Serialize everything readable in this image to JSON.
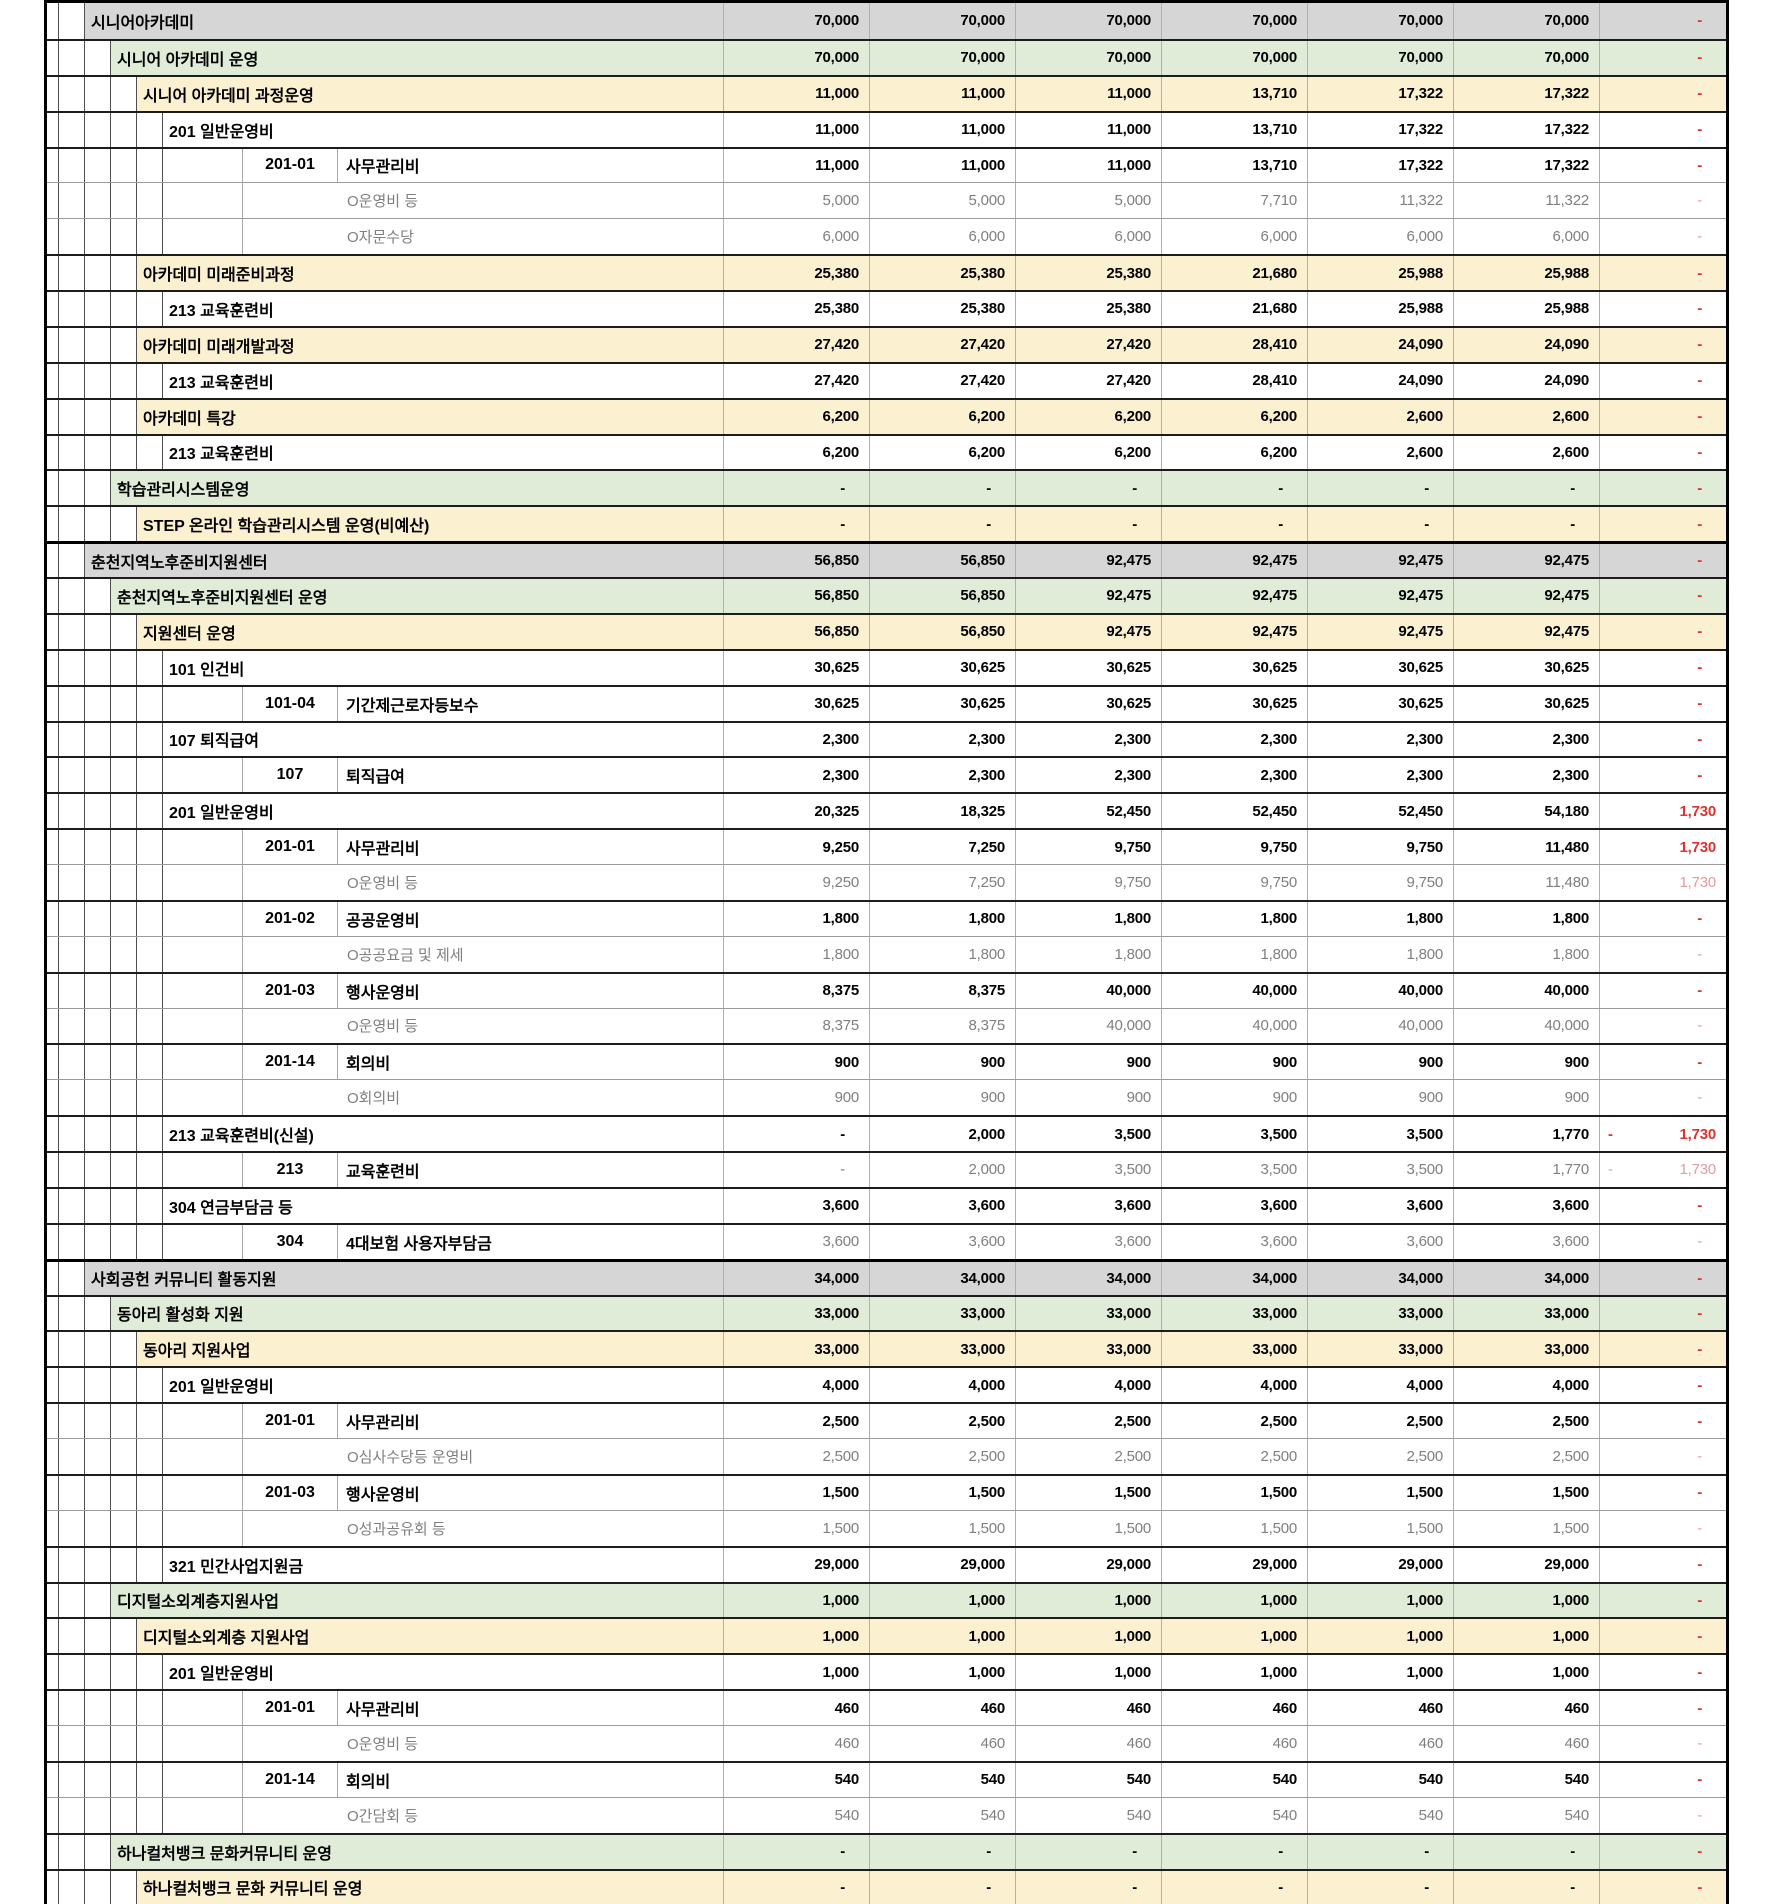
{
  "colors": {
    "level0_bg": "#d6d6d6",
    "level1_bg": "#e0ecd8",
    "level2_bg": "#fbf0cf",
    "diff_red": "#e03131",
    "diff_red_light": "#e39c9c",
    "muted_text": "#7f7f7f"
  },
  "sheet": {
    "rows": [
      {
        "level": 0,
        "label": "시니어아카데미",
        "values": [
          "70,000",
          "70,000",
          "70,000",
          "70,000",
          "70,000",
          "70,000"
        ],
        "diff": "-"
      },
      {
        "level": 1,
        "label": "시니어 아카데미 운영",
        "values": [
          "70,000",
          "70,000",
          "70,000",
          "70,000",
          "70,000",
          "70,000"
        ],
        "diff": "-"
      },
      {
        "level": 2,
        "label": "시니어 아카데미 과정운영",
        "values": [
          "11,000",
          "11,000",
          "11,000",
          "13,710",
          "17,322",
          "17,322"
        ],
        "diff": "-"
      },
      {
        "level": 3,
        "label": "201 일반운영비",
        "values": [
          "11,000",
          "11,000",
          "11,000",
          "13,710",
          "17,322",
          "17,322"
        ],
        "diff": "-"
      },
      {
        "level": 4,
        "code": "201-01",
        "name": "사무관리비",
        "values": [
          "11,000",
          "11,000",
          "11,000",
          "13,710",
          "17,322",
          "17,322"
        ],
        "diff": "-"
      },
      {
        "level": 5,
        "label": "O운영비 등",
        "muted": true,
        "values": [
          "5,000",
          "5,000",
          "5,000",
          "7,710",
          "11,322",
          "11,322"
        ],
        "diff": "-"
      },
      {
        "level": 5,
        "label": "O자문수당",
        "muted": true,
        "values": [
          "6,000",
          "6,000",
          "6,000",
          "6,000",
          "6,000",
          "6,000"
        ],
        "diff": "-"
      },
      {
        "level": 2,
        "label": "아카데미 미래준비과정",
        "values": [
          "25,380",
          "25,380",
          "25,380",
          "21,680",
          "25,988",
          "25,988"
        ],
        "diff": "-"
      },
      {
        "level": 3,
        "label": "213 교육훈련비",
        "values": [
          "25,380",
          "25,380",
          "25,380",
          "21,680",
          "25,988",
          "25,988"
        ],
        "diff": "-"
      },
      {
        "level": 2,
        "label": "아카데미 미래개발과정",
        "values": [
          "27,420",
          "27,420",
          "27,420",
          "28,410",
          "24,090",
          "24,090"
        ],
        "diff": "-"
      },
      {
        "level": 3,
        "label": "213 교육훈련비",
        "values": [
          "27,420",
          "27,420",
          "27,420",
          "28,410",
          "24,090",
          "24,090"
        ],
        "diff": "-"
      },
      {
        "level": 2,
        "label": "아카데미 특강",
        "values": [
          "6,200",
          "6,200",
          "6,200",
          "6,200",
          "2,600",
          "2,600"
        ],
        "diff": "-"
      },
      {
        "level": 3,
        "label": "213 교육훈련비",
        "values": [
          "6,200",
          "6,200",
          "6,200",
          "6,200",
          "2,600",
          "2,600"
        ],
        "diff": "-"
      },
      {
        "level": 1,
        "label": "학습관리시스템운영",
        "values": [
          "-",
          "-",
          "-",
          "-",
          "-",
          "-"
        ],
        "diff": "-"
      },
      {
        "level": 2,
        "label": "STEP 온라인 학습관리시스템 운영(비예산)",
        "values": [
          "-",
          "-",
          "-",
          "-",
          "-",
          "-"
        ],
        "diff": "-"
      },
      {
        "level": 0,
        "label": "춘천지역노후준비지원센터",
        "values": [
          "56,850",
          "56,850",
          "92,475",
          "92,475",
          "92,475",
          "92,475"
        ],
        "diff": "-"
      },
      {
        "level": 1,
        "label": "춘천지역노후준비지원센터 운영",
        "values": [
          "56,850",
          "56,850",
          "92,475",
          "92,475",
          "92,475",
          "92,475"
        ],
        "diff": "-"
      },
      {
        "level": 2,
        "label": "지원센터 운영",
        "values": [
          "56,850",
          "56,850",
          "92,475",
          "92,475",
          "92,475",
          "92,475"
        ],
        "diff": "-"
      },
      {
        "level": 3,
        "label": "101 인건비",
        "values": [
          "30,625",
          "30,625",
          "30,625",
          "30,625",
          "30,625",
          "30,625"
        ],
        "diff": "-"
      },
      {
        "level": 4,
        "code": "101-04",
        "name": "기간제근로자등보수",
        "values": [
          "30,625",
          "30,625",
          "30,625",
          "30,625",
          "30,625",
          "30,625"
        ],
        "diff": "-"
      },
      {
        "level": 3,
        "label": "107 퇴직급여",
        "values": [
          "2,300",
          "2,300",
          "2,300",
          "2,300",
          "2,300",
          "2,300"
        ],
        "diff": "-"
      },
      {
        "level": 4,
        "code": "107",
        "name": "퇴직급여",
        "values": [
          "2,300",
          "2,300",
          "2,300",
          "2,300",
          "2,300",
          "2,300"
        ],
        "diff": "-"
      },
      {
        "level": 3,
        "label": "201 일반운영비",
        "values": [
          "20,325",
          "18,325",
          "52,450",
          "52,450",
          "52,450",
          "54,180"
        ],
        "diff": "1,730"
      },
      {
        "level": 4,
        "code": "201-01",
        "name": "사무관리비",
        "values": [
          "9,250",
          "7,250",
          "9,750",
          "9,750",
          "9,750",
          "11,480"
        ],
        "diff": "1,730"
      },
      {
        "level": 5,
        "label": "O운영비 등",
        "muted": true,
        "values": [
          "9,250",
          "7,250",
          "9,750",
          "9,750",
          "9,750",
          "11,480"
        ],
        "diff": "1,730"
      },
      {
        "level": 4,
        "code": "201-02",
        "name": "공공운영비",
        "values": [
          "1,800",
          "1,800",
          "1,800",
          "1,800",
          "1,800",
          "1,800"
        ],
        "diff": "-"
      },
      {
        "level": 5,
        "label": "O공공요금 및 제세",
        "muted": true,
        "values": [
          "1,800",
          "1,800",
          "1,800",
          "1,800",
          "1,800",
          "1,800"
        ],
        "diff": "-"
      },
      {
        "level": 4,
        "code": "201-03",
        "name": "행사운영비",
        "values": [
          "8,375",
          "8,375",
          "40,000",
          "40,000",
          "40,000",
          "40,000"
        ],
        "diff": "-"
      },
      {
        "level": 5,
        "label": "O운영비 등",
        "muted": true,
        "values": [
          "8,375",
          "8,375",
          "40,000",
          "40,000",
          "40,000",
          "40,000"
        ],
        "diff": "-"
      },
      {
        "level": 4,
        "code": "201-14",
        "name": "회의비",
        "values": [
          "900",
          "900",
          "900",
          "900",
          "900",
          "900"
        ],
        "diff": "-"
      },
      {
        "level": 5,
        "label": "O회의비",
        "muted": true,
        "values": [
          "900",
          "900",
          "900",
          "900",
          "900",
          "900"
        ],
        "diff": "-"
      },
      {
        "level": 3,
        "label": "213 교육훈련비(신설)",
        "values": [
          "-",
          "2,000",
          "3,500",
          "3,500",
          "3,500",
          "1,770"
        ],
        "diff": "1,730",
        "diff_prefix": "-"
      },
      {
        "level": 4,
        "code": "213",
        "name": "교육훈련비",
        "muted": true,
        "values": [
          "-",
          "2,000",
          "3,500",
          "3,500",
          "3,500",
          "1,770"
        ],
        "diff": "1,730",
        "diff_prefix": "-"
      },
      {
        "level": 3,
        "label": "304 연금부담금 등",
        "values": [
          "3,600",
          "3,600",
          "3,600",
          "3,600",
          "3,600",
          "3,600"
        ],
        "diff": "-"
      },
      {
        "level": 4,
        "code": "304",
        "name": "4대보험 사용자부담금",
        "muted": true,
        "values": [
          "3,600",
          "3,600",
          "3,600",
          "3,600",
          "3,600",
          "3,600"
        ],
        "diff": "-"
      },
      {
        "level": 0,
        "label": "사회공헌 커뮤니티 활동지원",
        "values": [
          "34,000",
          "34,000",
          "34,000",
          "34,000",
          "34,000",
          "34,000"
        ],
        "diff": "-"
      },
      {
        "level": 1,
        "label": "동아리 활성화 지원",
        "values": [
          "33,000",
          "33,000",
          "33,000",
          "33,000",
          "33,000",
          "33,000"
        ],
        "diff": "-"
      },
      {
        "level": 2,
        "label": "동아리 지원사업",
        "values": [
          "33,000",
          "33,000",
          "33,000",
          "33,000",
          "33,000",
          "33,000"
        ],
        "diff": "-"
      },
      {
        "level": 3,
        "label": "201 일반운영비",
        "values": [
          "4,000",
          "4,000",
          "4,000",
          "4,000",
          "4,000",
          "4,000"
        ],
        "diff": "-"
      },
      {
        "level": 4,
        "code": "201-01",
        "name": "사무관리비",
        "values": [
          "2,500",
          "2,500",
          "2,500",
          "2,500",
          "2,500",
          "2,500"
        ],
        "diff": "-"
      },
      {
        "level": 5,
        "label": "O심사수당등 운영비",
        "muted": true,
        "values": [
          "2,500",
          "2,500",
          "2,500",
          "2,500",
          "2,500",
          "2,500"
        ],
        "diff": "-"
      },
      {
        "level": 4,
        "code": "201-03",
        "name": "행사운영비",
        "values": [
          "1,500",
          "1,500",
          "1,500",
          "1,500",
          "1,500",
          "1,500"
        ],
        "diff": "-"
      },
      {
        "level": 5,
        "label": "O성과공유회 등",
        "muted": true,
        "values": [
          "1,500",
          "1,500",
          "1,500",
          "1,500",
          "1,500",
          "1,500"
        ],
        "diff": "-"
      },
      {
        "level": 3,
        "label": "321 민간사업지원금",
        "values": [
          "29,000",
          "29,000",
          "29,000",
          "29,000",
          "29,000",
          "29,000"
        ],
        "diff": "-"
      },
      {
        "level": 1,
        "label": "디지털소외계층지원사업",
        "values": [
          "1,000",
          "1,000",
          "1,000",
          "1,000",
          "1,000",
          "1,000"
        ],
        "diff": "-"
      },
      {
        "level": 2,
        "label": "디지털소외계층 지원사업",
        "values": [
          "1,000",
          "1,000",
          "1,000",
          "1,000",
          "1,000",
          "1,000"
        ],
        "diff": "-"
      },
      {
        "level": 3,
        "label": "201 일반운영비",
        "values": [
          "1,000",
          "1,000",
          "1,000",
          "1,000",
          "1,000",
          "1,000"
        ],
        "diff": "-"
      },
      {
        "level": 4,
        "code": "201-01",
        "name": "사무관리비",
        "values": [
          "460",
          "460",
          "460",
          "460",
          "460",
          "460"
        ],
        "diff": "-"
      },
      {
        "level": 5,
        "label": "O운영비 등",
        "muted": true,
        "values": [
          "460",
          "460",
          "460",
          "460",
          "460",
          "460"
        ],
        "diff": "-"
      },
      {
        "level": 4,
        "code": "201-14",
        "name": "회의비",
        "values": [
          "540",
          "540",
          "540",
          "540",
          "540",
          "540"
        ],
        "diff": "-"
      },
      {
        "level": 5,
        "label": "O간담회 등",
        "muted": true,
        "values": [
          "540",
          "540",
          "540",
          "540",
          "540",
          "540"
        ],
        "diff": "-"
      },
      {
        "level": 1,
        "label": "하나컬처뱅크 문화커뮤니티 운영",
        "values": [
          "-",
          "-",
          "-",
          "-",
          "-",
          "-"
        ],
        "diff": "-"
      },
      {
        "level": 2,
        "label": "하나컬처뱅크 문화 커뮤니티 운영",
        "values": [
          "-",
          "-",
          "-",
          "-",
          "-",
          "-"
        ],
        "diff": "-"
      }
    ]
  }
}
